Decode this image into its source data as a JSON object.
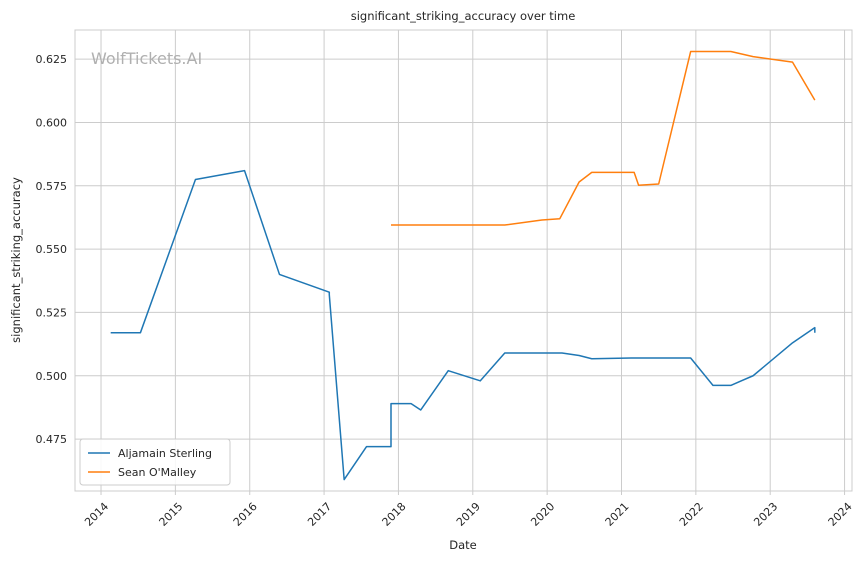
{
  "chart_data": {
    "type": "line",
    "title": "significant_striking_accuracy over time",
    "xlabel": "Date",
    "ylabel": "significant_striking_accuracy",
    "watermark": "WolfTickets.AI",
    "xlim": [
      2013.65,
      2024.1
    ],
    "ylim": [
      0.4545,
      0.6365
    ],
    "x_ticks": [
      2014,
      2015,
      2016,
      2017,
      2018,
      2019,
      2020,
      2021,
      2022,
      2023,
      2024
    ],
    "x_tick_labels": [
      "2014",
      "2015",
      "2016",
      "2017",
      "2018",
      "2019",
      "2020",
      "2021",
      "2022",
      "2023",
      "2024"
    ],
    "y_ticks": [
      0.475,
      0.5,
      0.525,
      0.55,
      0.575,
      0.6,
      0.625
    ],
    "y_tick_labels": [
      "0.475",
      "0.500",
      "0.525",
      "0.550",
      "0.575",
      "0.600",
      "0.625"
    ],
    "grid": true,
    "legend_position": "lower-left",
    "series": [
      {
        "name": "Aljamain Sterling",
        "color": "#1f77b4",
        "points": [
          [
            2014.13,
            0.517
          ],
          [
            2014.53,
            0.517
          ],
          [
            2015.27,
            0.5775
          ],
          [
            2015.93,
            0.581
          ],
          [
            2016.4,
            0.54
          ],
          [
            2017.07,
            0.533
          ],
          [
            2017.07,
            0.532
          ],
          [
            2017.27,
            0.459
          ],
          [
            2017.57,
            0.472
          ],
          [
            2017.9,
            0.472
          ],
          [
            2017.9,
            0.489
          ],
          [
            2018.17,
            0.489
          ],
          [
            2018.3,
            0.4865
          ],
          [
            2018.67,
            0.502
          ],
          [
            2019.1,
            0.498
          ],
          [
            2019.43,
            0.509
          ],
          [
            2020.2,
            0.509
          ],
          [
            2020.43,
            0.508
          ],
          [
            2020.6,
            0.5067
          ],
          [
            2021.13,
            0.507
          ],
          [
            2021.93,
            0.507
          ],
          [
            2022.23,
            0.4962
          ],
          [
            2022.47,
            0.4962
          ],
          [
            2022.77,
            0.5
          ],
          [
            2023.3,
            0.513
          ],
          [
            2023.6,
            0.519
          ],
          [
            2023.6,
            0.517
          ]
        ]
      },
      {
        "name": "Sean O'Malley",
        "color": "#ff7f0e",
        "points": [
          [
            2017.9,
            0.5595
          ],
          [
            2019.43,
            0.5595
          ],
          [
            2019.93,
            0.5615
          ],
          [
            2020.17,
            0.562
          ],
          [
            2020.43,
            0.5765
          ],
          [
            2020.6,
            0.5803
          ],
          [
            2021.17,
            0.5803
          ],
          [
            2021.23,
            0.5752
          ],
          [
            2021.5,
            0.5757
          ],
          [
            2021.93,
            0.628
          ],
          [
            2022.47,
            0.628
          ],
          [
            2022.77,
            0.626
          ],
          [
            2023.3,
            0.6238
          ],
          [
            2023.6,
            0.6088
          ]
        ]
      }
    ]
  }
}
